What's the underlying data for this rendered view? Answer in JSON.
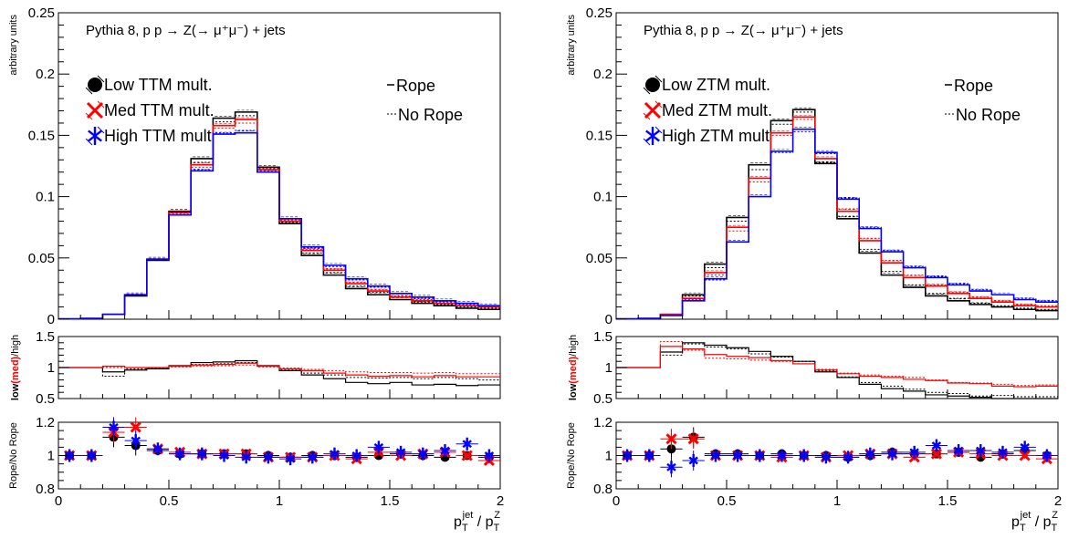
{
  "chart_data": [
    {
      "type": "line",
      "subtype": "histogram",
      "annotation": "Pythia 8, p p → Z(→ μ⁺μ⁻) + jets",
      "xlabel": "p_T^jet / p_T^Z",
      "x_tick_labels": [
        "0",
        "0.5",
        "1",
        "1.5",
        "2"
      ],
      "xlim": [
        0,
        2
      ],
      "main": {
        "ylabel": "arbitrary units",
        "ylim": [
          0,
          0.25
        ],
        "y_tick_labels": [
          "0",
          "0.05",
          "0.1",
          "0.15",
          "0.2",
          "0.25"
        ],
        "bin_edges": [
          0,
          0.1,
          0.2,
          0.3,
          0.4,
          0.5,
          0.6,
          0.7,
          0.8,
          0.9,
          1.0,
          1.1,
          1.2,
          1.3,
          1.4,
          1.5,
          1.6,
          1.7,
          1.8,
          1.9,
          2.0
        ],
        "series": [
          {
            "name": "Low TTM mult.",
            "color": "#000000",
            "marker": "circle",
            "rope": [
              0.0002,
              0.0006,
              0.004,
              0.019,
              0.048,
              0.088,
              0.131,
              0.164,
              0.169,
              0.124,
              0.078,
              0.052,
              0.036,
              0.025,
              0.02,
              0.016,
              0.013,
              0.011,
              0.009,
              0.008
            ],
            "no_rope": [
              0.0002,
              0.0006,
              0.004,
              0.02,
              0.049,
              0.087,
              0.128,
              0.161,
              0.166,
              0.123,
              0.079,
              0.054,
              0.038,
              0.027,
              0.022,
              0.018,
              0.014,
              0.012,
              0.01,
              0.009
            ]
          },
          {
            "name": "Med TTM mult.",
            "color": "#ff0000",
            "marker": "x",
            "rope": [
              0.0002,
              0.0006,
              0.004,
              0.02,
              0.049,
              0.087,
              0.126,
              0.158,
              0.163,
              0.122,
              0.08,
              0.056,
              0.04,
              0.029,
              0.023,
              0.018,
              0.015,
              0.013,
              0.011,
              0.01
            ],
            "no_rope": [
              0.0002,
              0.0006,
              0.004,
              0.02,
              0.049,
              0.086,
              0.124,
              0.156,
              0.16,
              0.121,
              0.081,
              0.057,
              0.041,
              0.03,
              0.024,
              0.019,
              0.016,
              0.013,
              0.011,
              0.01
            ]
          },
          {
            "name": "High TTM mult.",
            "color": "#0000ff",
            "marker": "star",
            "rope": [
              0.0002,
              0.0006,
              0.004,
              0.02,
              0.049,
              0.085,
              0.121,
              0.151,
              0.152,
              0.12,
              0.082,
              0.059,
              0.044,
              0.033,
              0.027,
              0.021,
              0.018,
              0.015,
              0.013,
              0.011
            ],
            "no_rope": [
              0.0002,
              0.0006,
              0.004,
              0.02,
              0.049,
              0.085,
              0.122,
              0.152,
              0.154,
              0.12,
              0.082,
              0.058,
              0.043,
              0.032,
              0.026,
              0.021,
              0.017,
              0.014,
              0.012,
              0.011
            ]
          }
        ],
        "legend_markers": [
          "Low TTM mult.",
          "Med TTM mult.",
          "High TTM mult"
        ],
        "legend_lines": [
          "Rope",
          "No Rope"
        ]
      },
      "ratio1": {
        "ylabel_parts": [
          "low",
          "(med)",
          "/high"
        ],
        "ylim": [
          0.5,
          1.5
        ],
        "y_tick_labels": [
          "0.5",
          "1",
          "1.5"
        ],
        "series": [
          {
            "name": "low/high",
            "color": "#000000",
            "rope": [
              1.0,
              1.0,
              0.93,
              0.96,
              0.98,
              1.03,
              1.08,
              1.09,
              1.11,
              1.03,
              0.95,
              0.88,
              0.82,
              0.76,
              0.74,
              0.76,
              0.72,
              0.73,
              0.71,
              0.72
            ],
            "no_rope": [
              1.0,
              1.0,
              0.86,
              0.98,
              0.99,
              1.02,
              1.05,
              1.06,
              1.08,
              1.02,
              0.96,
              0.91,
              0.88,
              0.84,
              0.83,
              0.84,
              0.82,
              0.84,
              0.82,
              0.8
            ]
          },
          {
            "name": "med/high",
            "color": "#ff0000",
            "rope": [
              1.0,
              1.0,
              1.02,
              1.0,
              1.0,
              1.02,
              1.04,
              1.05,
              1.07,
              1.02,
              0.98,
              0.95,
              0.91,
              0.88,
              0.86,
              0.87,
              0.85,
              0.87,
              0.85,
              0.85
            ],
            "no_rope": [
              1.0,
              1.0,
              1.0,
              1.0,
              1.0,
              1.01,
              1.02,
              1.03,
              1.04,
              1.01,
              0.99,
              0.97,
              0.95,
              0.93,
              0.92,
              0.92,
              0.91,
              0.92,
              0.9,
              0.9
            ]
          }
        ]
      },
      "ratio2": {
        "ylabel": "Rope/No Rope",
        "ylim": [
          0.8,
          1.2
        ],
        "y_tick_labels": [
          "0.8",
          "1",
          "1.2"
        ],
        "x": [
          0.05,
          0.15,
          0.25,
          0.35,
          0.45,
          0.55,
          0.65,
          0.75,
          0.85,
          0.95,
          1.05,
          1.15,
          1.25,
          1.35,
          1.45,
          1.55,
          1.65,
          1.75,
          1.85,
          1.95
        ],
        "series": [
          {
            "name": "Low TTM mult.",
            "color": "#000000",
            "marker": "circle",
            "values": [
              1.0,
              1.0,
              1.11,
              1.06,
              1.03,
              1.01,
              1.01,
              1.01,
              1.01,
              1.0,
              0.99,
              1.0,
              1.0,
              0.99,
              1.0,
              1.01,
              1.0,
              0.99,
              1.0,
              0.99
            ]
          },
          {
            "name": "Med TTM mult.",
            "color": "#ff0000",
            "marker": "x",
            "values": [
              1.0,
              1.0,
              1.14,
              1.17,
              1.04,
              1.02,
              1.01,
              1.01,
              1.01,
              0.99,
              0.99,
              0.99,
              1.0,
              0.98,
              1.02,
              1.0,
              1.01,
              1.02,
              1.0,
              0.97
            ]
          },
          {
            "name": "High TTM mult.",
            "color": "#0000ff",
            "marker": "star",
            "values": [
              1.0,
              1.0,
              1.17,
              1.09,
              1.04,
              1.01,
              1.01,
              1.0,
              0.99,
              0.99,
              0.98,
              0.99,
              1.01,
              1.0,
              1.05,
              1.02,
              1.01,
              1.03,
              1.07,
              1.0
            ]
          }
        ]
      }
    },
    {
      "type": "line",
      "subtype": "histogram",
      "annotation": "Pythia 8, p p → Z(→ μ⁺μ⁻) + jets",
      "xlabel": "p_T^jet / p_T^Z",
      "x_tick_labels": [
        "0",
        "0.5",
        "1",
        "1.5",
        "2"
      ],
      "xlim": [
        0,
        2
      ],
      "main": {
        "ylabel": "arbitrary units",
        "ylim": [
          0,
          0.25
        ],
        "y_tick_labels": [
          "0",
          "0.05",
          "0.1",
          "0.15",
          "0.2",
          "0.25"
        ],
        "bin_edges": [
          0,
          0.1,
          0.2,
          0.3,
          0.4,
          0.5,
          0.6,
          0.7,
          0.8,
          0.9,
          1.0,
          1.1,
          1.2,
          1.3,
          1.4,
          1.5,
          1.6,
          1.7,
          1.8,
          1.9,
          2.0
        ],
        "series": [
          {
            "name": "Low ZTM mult.",
            "color": "#000000",
            "marker": "circle",
            "rope": [
              0.0002,
              0.0006,
              0.004,
              0.02,
              0.045,
              0.083,
              0.126,
              0.162,
              0.171,
              0.127,
              0.082,
              0.054,
              0.036,
              0.026,
              0.019,
              0.015,
              0.012,
              0.01,
              0.008,
              0.007
            ],
            "no_rope": [
              0.0002,
              0.0006,
              0.004,
              0.019,
              0.042,
              0.08,
              0.122,
              0.159,
              0.169,
              0.128,
              0.084,
              0.057,
              0.039,
              0.028,
              0.021,
              0.017,
              0.013,
              0.011,
              0.009,
              0.008
            ]
          },
          {
            "name": "Med ZTM mult.",
            "color": "#ff0000",
            "marker": "x",
            "rope": [
              0.0002,
              0.0006,
              0.004,
              0.017,
              0.038,
              0.075,
              0.115,
              0.152,
              0.165,
              0.131,
              0.088,
              0.064,
              0.046,
              0.034,
              0.027,
              0.021,
              0.017,
              0.014,
              0.011,
              0.01
            ],
            "no_rope": [
              0.0002,
              0.0006,
              0.004,
              0.016,
              0.036,
              0.072,
              0.112,
              0.15,
              0.163,
              0.131,
              0.09,
              0.066,
              0.048,
              0.036,
              0.028,
              0.022,
              0.018,
              0.015,
              0.012,
              0.011
            ]
          },
          {
            "name": "High ZTM mult.",
            "color": "#0000ff",
            "marker": "star",
            "rope": [
              0.0002,
              0.0006,
              0.003,
              0.015,
              0.033,
              0.063,
              0.1,
              0.137,
              0.155,
              0.136,
              0.098,
              0.074,
              0.055,
              0.042,
              0.034,
              0.028,
              0.023,
              0.02,
              0.016,
              0.014
            ],
            "no_rope": [
              0.0002,
              0.0006,
              0.003,
              0.015,
              0.032,
              0.063,
              0.1,
              0.136,
              0.153,
              0.135,
              0.099,
              0.075,
              0.056,
              0.043,
              0.035,
              0.029,
              0.024,
              0.02,
              0.017,
              0.015
            ]
          }
        ],
        "legend_markers": [
          "Low ZTM mult.",
          "Med ZTM mult.",
          "High ZTM mult"
        ],
        "legend_lines": [
          "Rope",
          "No Rope"
        ]
      },
      "ratio1": {
        "ylabel_parts": [
          "low",
          "(med)",
          "/high"
        ],
        "ylim": [
          0.5,
          1.5
        ],
        "y_tick_labels": [
          "0.5",
          "1",
          "1.5"
        ],
        "series": [
          {
            "name": "low/high",
            "color": "#000000",
            "rope": [
              1.0,
              1.0,
              1.25,
              1.4,
              1.36,
              1.32,
              1.26,
              1.18,
              1.1,
              0.93,
              0.84,
              0.73,
              0.66,
              0.62,
              0.56,
              0.54,
              0.52,
              0.5,
              0.5,
              0.5
            ],
            "no_rope": [
              1.0,
              1.0,
              1.2,
              1.38,
              1.33,
              1.3,
              1.22,
              1.17,
              1.1,
              0.95,
              0.85,
              0.76,
              0.7,
              0.65,
              0.6,
              0.58,
              0.54,
              0.55,
              0.53,
              0.53
            ]
          },
          {
            "name": "med/high",
            "color": "#ff0000",
            "rope": [
              1.0,
              1.0,
              1.34,
              1.3,
              1.21,
              1.18,
              1.16,
              1.11,
              1.06,
              0.96,
              0.9,
              0.86,
              0.84,
              0.81,
              0.79,
              0.75,
              0.74,
              0.7,
              0.69,
              0.7
            ],
            "no_rope": [
              1.0,
              1.0,
              1.42,
              1.28,
              1.15,
              1.14,
              1.12,
              1.1,
              1.06,
              0.97,
              0.91,
              0.88,
              0.86,
              0.84,
              0.8,
              0.76,
              0.75,
              0.73,
              0.71,
              0.72
            ]
          }
        ]
      },
      "ratio2": {
        "ylabel": "Rope/No Rope",
        "ylim": [
          0.8,
          1.2
        ],
        "y_tick_labels": [
          "0.8",
          "1",
          "1.2"
        ],
        "x": [
          0.05,
          0.15,
          0.25,
          0.35,
          0.45,
          0.55,
          0.65,
          0.75,
          0.85,
          0.95,
          1.05,
          1.15,
          1.25,
          1.35,
          1.45,
          1.55,
          1.65,
          1.75,
          1.85,
          1.95
        ],
        "series": [
          {
            "name": "Low ZTM mult.",
            "color": "#000000",
            "marker": "circle",
            "values": [
              1.0,
              1.0,
              1.04,
              1.11,
              1.01,
              1.01,
              1.0,
              1.01,
              1.0,
              1.0,
              0.99,
              1.0,
              1.02,
              1.01,
              1.01,
              1.02,
              0.99,
              1.01,
              1.03,
              1.0
            ]
          },
          {
            "name": "Med ZTM mult.",
            "color": "#ff0000",
            "marker": "x",
            "values": [
              1.0,
              1.0,
              1.1,
              1.1,
              1.0,
              1.0,
              1.0,
              0.99,
              1.0,
              0.99,
              1.0,
              1.01,
              1.01,
              0.99,
              1.01,
              1.02,
              1.01,
              1.0,
              1.0,
              0.98
            ]
          },
          {
            "name": "High ZTM mult.",
            "color": "#0000ff",
            "marker": "star",
            "values": [
              1.0,
              1.0,
              0.93,
              0.97,
              1.0,
              1.0,
              1.0,
              1.0,
              1.0,
              0.99,
              0.99,
              1.01,
              1.01,
              1.02,
              1.06,
              1.03,
              1.03,
              1.02,
              1.05,
              1.0
            ]
          }
        ]
      }
    }
  ]
}
